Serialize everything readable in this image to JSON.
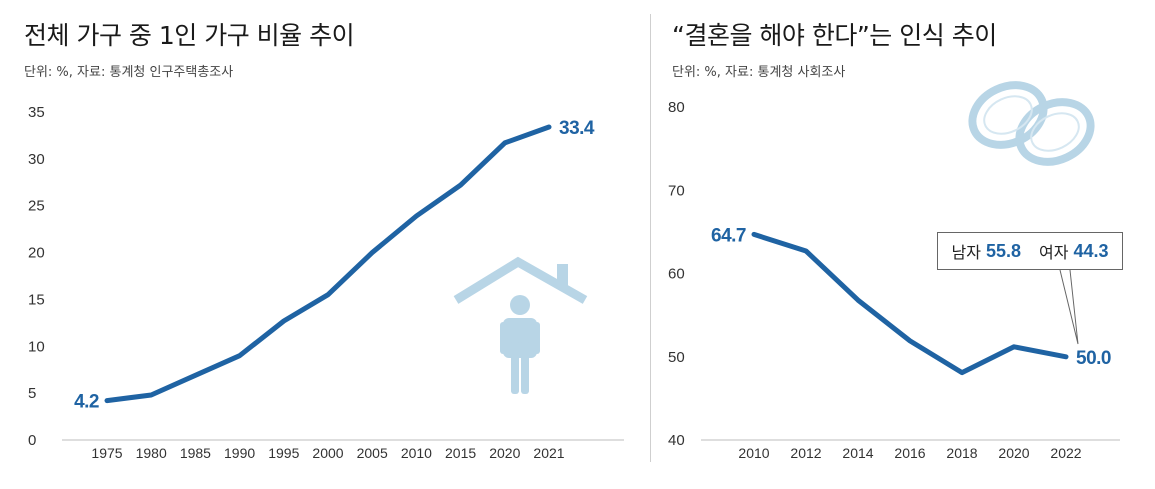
{
  "chart_data": [
    {
      "type": "line",
      "title": "전체 가구 중 1인 가구 비율 추이",
      "subtitle": "단위: %, 자료: 통계청 인구주택총조사",
      "x": [
        "1975",
        "1980",
        "1985",
        "1990",
        "1995",
        "2000",
        "2005",
        "2010",
        "2015",
        "2020",
        "2021"
      ],
      "values": [
        4.2,
        4.8,
        6.9,
        9.0,
        12.7,
        15.5,
        20.0,
        23.9,
        27.2,
        31.7,
        33.4
      ],
      "yticks": [
        "0",
        "5",
        "10",
        "15",
        "20",
        "25",
        "30",
        "35"
      ],
      "ylim": [
        0,
        35
      ],
      "data_labels": {
        "first": "4.2",
        "last": "33.4"
      },
      "color": "#1f63a3",
      "grid": false,
      "icon": "house-person-icon"
    },
    {
      "type": "line",
      "title": "“결혼을 해야 한다”는 인식 추이",
      "subtitle": "단위: %, 자료: 통계청 사회조사",
      "x": [
        "2010",
        "2012",
        "2014",
        "2016",
        "2018",
        "2020",
        "2022"
      ],
      "values": [
        64.7,
        62.7,
        56.8,
        51.9,
        48.1,
        51.2,
        50.0
      ],
      "yticks": [
        "40",
        "50",
        "60",
        "70",
        "80"
      ],
      "ylim": [
        40,
        80
      ],
      "data_labels": {
        "first": "64.7",
        "last": "50.0"
      },
      "callout": {
        "male_label": "남자",
        "male_value": "55.8",
        "female_label": "여자",
        "female_value": "44.3"
      },
      "color": "#1f63a3",
      "grid": false,
      "icon": "wedding-rings-icon"
    }
  ]
}
